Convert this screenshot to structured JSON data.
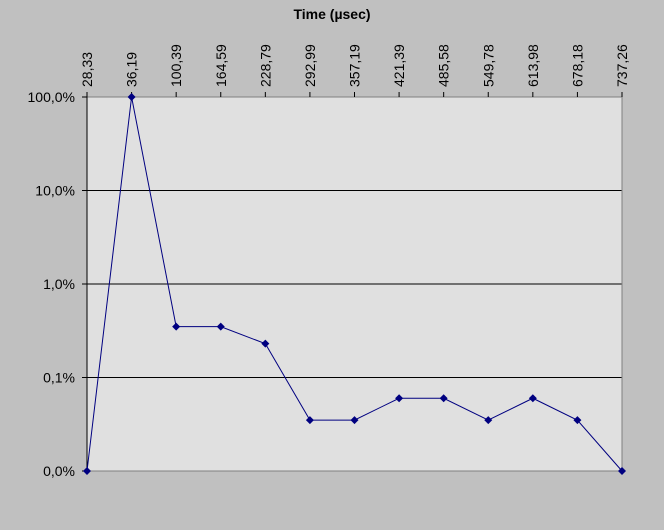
{
  "chart_data": {
    "type": "line",
    "title": "",
    "xlabel": "Time (µsec)",
    "ylabel": "",
    "x_axis_position": "top",
    "x_tick_labels": [
      "28,33",
      "36,19",
      "100,39",
      "164,59",
      "228,79",
      "292,99",
      "357,19",
      "421,39",
      "485,58",
      "549,78",
      "613,98",
      "678,18",
      "737,26"
    ],
    "y_scale": "log",
    "y_tick_labels": [
      "100,0%",
      "10,0%",
      "1,0%",
      "0,1%",
      "0,0%"
    ],
    "ylim_percent": [
      0.01,
      100
    ],
    "grid": true,
    "legend": "none",
    "series": [
      {
        "values_percent": [
          0.01,
          100,
          0.35,
          0.35,
          0.23,
          0.035,
          0.035,
          0.06,
          0.06,
          0.035,
          0.06,
          0.035,
          0.01
        ]
      }
    ],
    "colors": {
      "line": "#000080",
      "marker": "#000080",
      "plot_background": "#e0e0e0",
      "chart_background": "#c0c0c0",
      "grid": "#000000"
    }
  }
}
